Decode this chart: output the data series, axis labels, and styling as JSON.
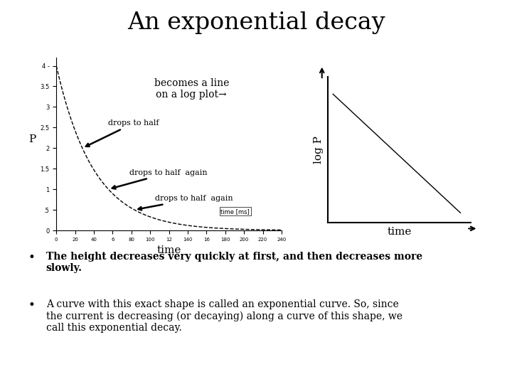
{
  "title": "An exponential decay",
  "title_fontsize": 24,
  "background_color": "#ffffff",
  "left_plot": {
    "xlabel": "time",
    "ylabel": "P",
    "xlabel_fontsize": 11,
    "ylabel_fontsize": 11,
    "curve_color": "#000000",
    "curve_style": "--",
    "annotation1": "drops to half",
    "annotation2": "drops to half  again",
    "annotation3": "drops to half  again",
    "legend_label": "time [ms]"
  },
  "right_plot": {
    "xlabel": "time",
    "ylabel": "log P",
    "xlabel_fontsize": 11,
    "ylabel_fontsize": 11,
    "line_color": "#000000"
  },
  "annotation_text": "becomes a line\non a log plot→",
  "annotation_fontsize": 10,
  "bullet_fontsize": 10
}
